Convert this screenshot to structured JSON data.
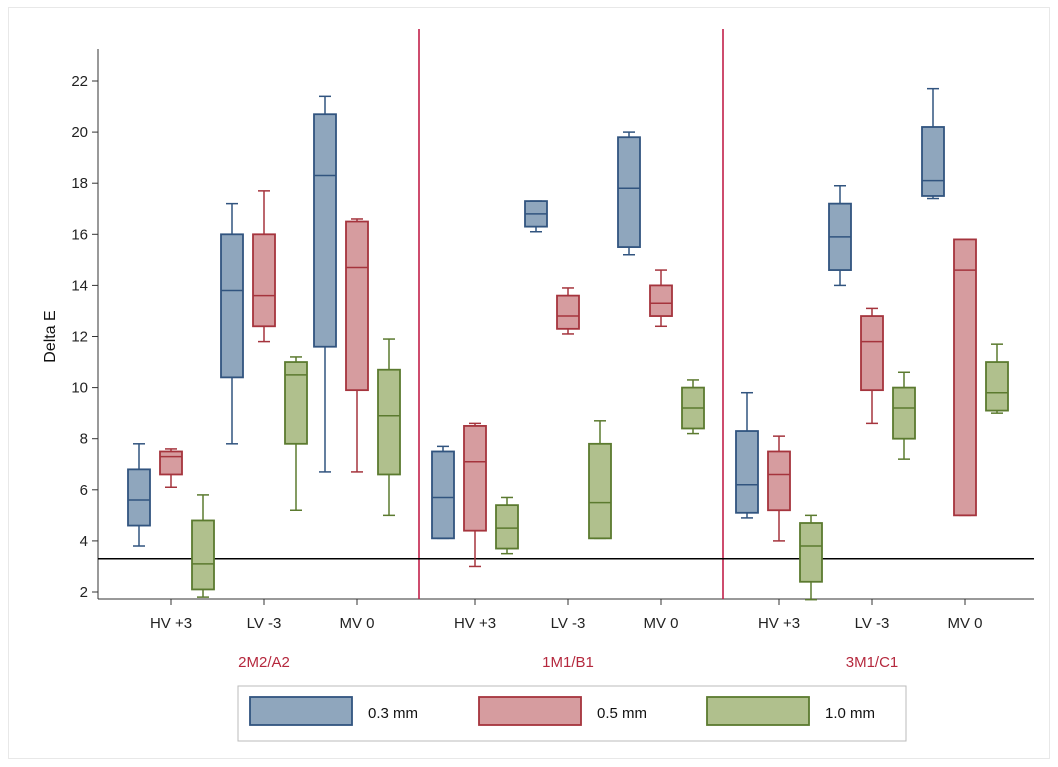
{
  "chart_data": {
    "type": "box",
    "ylabel": "Delta E",
    "ylim": [
      1,
      23
    ],
    "yticks": [
      2,
      4,
      6,
      8,
      10,
      12,
      14,
      16,
      18,
      20,
      22
    ],
    "categories": [
      "HV +3",
      "LV -3",
      "MV 0"
    ],
    "groups": [
      "2M2/A2",
      "1M1/B1",
      "3M1/C1"
    ],
    "reference_line": 3.3,
    "series": [
      {
        "name": "0.3 mm",
        "fill": "#8fa6bd",
        "stroke": "#31547f"
      },
      {
        "name": "0.5 mm",
        "fill": "#d69c9f",
        "stroke": "#a5343d"
      },
      {
        "name": "1.0 mm",
        "fill": "#b0c08d",
        "stroke": "#5b7a2f"
      }
    ],
    "boxes": [
      {
        "group": "2M2/A2",
        "category": "HV +3",
        "series": "0.3 mm",
        "min": 3.8,
        "q1": 4.6,
        "median": 5.6,
        "q3": 6.8,
        "max": 7.8
      },
      {
        "group": "2M2/A2",
        "category": "HV +3",
        "series": "0.5 mm",
        "min": 6.1,
        "q1": 6.6,
        "median": 7.3,
        "q3": 7.5,
        "max": 7.6
      },
      {
        "group": "2M2/A2",
        "category": "HV +3",
        "series": "1.0 mm",
        "min": 1.8,
        "q1": 2.1,
        "median": 3.1,
        "q3": 4.8,
        "max": 5.8
      },
      {
        "group": "2M2/A2",
        "category": "LV -3",
        "series": "0.3 mm",
        "min": 7.8,
        "q1": 10.4,
        "median": 13.8,
        "q3": 16.0,
        "max": 17.2
      },
      {
        "group": "2M2/A2",
        "category": "LV -3",
        "series": "0.5 mm",
        "min": 11.8,
        "q1": 12.4,
        "median": 13.6,
        "q3": 16.0,
        "max": 17.7
      },
      {
        "group": "2M2/A2",
        "category": "LV -3",
        "series": "1.0 mm",
        "min": 5.2,
        "q1": 7.8,
        "median": 10.5,
        "q3": 11.0,
        "max": 11.2
      },
      {
        "group": "2M2/A2",
        "category": "MV 0",
        "series": "0.3 mm",
        "min": 6.7,
        "q1": 11.6,
        "median": 18.3,
        "q3": 20.7,
        "max": 21.4
      },
      {
        "group": "2M2/A2",
        "category": "MV 0",
        "series": "0.5 mm",
        "min": 6.7,
        "q1": 9.9,
        "median": 14.7,
        "q3": 16.5,
        "max": 16.6
      },
      {
        "group": "2M2/A2",
        "category": "MV 0",
        "series": "1.0 mm",
        "min": 5.0,
        "q1": 6.6,
        "median": 8.9,
        "q3": 10.7,
        "max": 11.9
      },
      {
        "group": "1M1/B1",
        "category": "HV +3",
        "series": "0.3 mm",
        "min": 4.1,
        "q1": 4.1,
        "median": 5.7,
        "q3": 7.5,
        "max": 7.7
      },
      {
        "group": "1M1/B1",
        "category": "HV +3",
        "series": "0.5 mm",
        "min": 3.0,
        "q1": 4.4,
        "median": 7.1,
        "q3": 8.5,
        "max": 8.6
      },
      {
        "group": "1M1/B1",
        "category": "HV +3",
        "series": "1.0 mm",
        "min": 3.5,
        "q1": 3.7,
        "median": 4.5,
        "q3": 5.4,
        "max": 5.7
      },
      {
        "group": "1M1/B1",
        "category": "LV -3",
        "series": "0.3 mm",
        "min": 16.1,
        "q1": 16.3,
        "median": 16.8,
        "q3": 17.3,
        "max": 17.3
      },
      {
        "group": "1M1/B1",
        "category": "LV -3",
        "series": "0.5 mm",
        "min": 12.1,
        "q1": 12.3,
        "median": 12.8,
        "q3": 13.6,
        "max": 13.9
      },
      {
        "group": "1M1/B1",
        "category": "LV -3",
        "series": "1.0 mm",
        "min": 4.1,
        "q1": 4.1,
        "median": 5.5,
        "q3": 7.8,
        "max": 8.7
      },
      {
        "group": "1M1/B1",
        "category": "MV 0",
        "series": "0.3 mm",
        "min": 15.2,
        "q1": 15.5,
        "median": 17.8,
        "q3": 19.8,
        "max": 20.0
      },
      {
        "group": "1M1/B1",
        "category": "MV 0",
        "series": "0.5 mm",
        "min": 12.4,
        "q1": 12.8,
        "median": 13.3,
        "q3": 14.0,
        "max": 14.6
      },
      {
        "group": "1M1/B1",
        "category": "MV 0",
        "series": "1.0 mm",
        "min": 8.2,
        "q1": 8.4,
        "median": 9.2,
        "q3": 10.0,
        "max": 10.3
      },
      {
        "group": "3M1/C1",
        "category": "HV +3",
        "series": "0.3 mm",
        "min": 4.9,
        "q1": 5.1,
        "median": 6.2,
        "q3": 8.3,
        "max": 9.8
      },
      {
        "group": "3M1/C1",
        "category": "HV +3",
        "series": "0.5 mm",
        "min": 4.0,
        "q1": 5.2,
        "median": 6.6,
        "q3": 7.5,
        "max": 8.1
      },
      {
        "group": "3M1/C1",
        "category": "HV +3",
        "series": "1.0 mm",
        "min": 1.7,
        "q1": 2.4,
        "median": 3.8,
        "q3": 4.7,
        "max": 5.0
      },
      {
        "group": "3M1/C1",
        "category": "LV -3",
        "series": "0.3 mm",
        "min": 14.0,
        "q1": 14.6,
        "median": 15.9,
        "q3": 17.2,
        "max": 17.9
      },
      {
        "group": "3M1/C1",
        "category": "LV -3",
        "series": "0.5 mm",
        "min": 8.6,
        "q1": 9.9,
        "median": 11.8,
        "q3": 12.8,
        "max": 13.1
      },
      {
        "group": "3M1/C1",
        "category": "LV -3",
        "series": "1.0 mm",
        "min": 7.2,
        "q1": 8.0,
        "median": 9.2,
        "q3": 10.0,
        "max": 10.6
      },
      {
        "group": "3M1/C1",
        "category": "MV 0",
        "series": "0.3 mm",
        "min": 17.4,
        "q1": 17.5,
        "median": 18.1,
        "q3": 20.2,
        "max": 21.7
      },
      {
        "group": "3M1/C1",
        "category": "MV 0",
        "series": "0.5 mm",
        "min": 5.0,
        "q1": 5.0,
        "median": 14.6,
        "q3": 15.8,
        "max": 15.8
      },
      {
        "group": "3M1/C1",
        "category": "MV 0",
        "series": "1.0 mm",
        "min": 9.0,
        "q1": 9.1,
        "median": 9.8,
        "q3": 11.0,
        "max": 11.7
      }
    ],
    "grid": false,
    "legend_placement": "bottom",
    "colors": {
      "group_label": "#b5283d",
      "separator": "#c21f4a",
      "reference_line": "#000000"
    }
  }
}
